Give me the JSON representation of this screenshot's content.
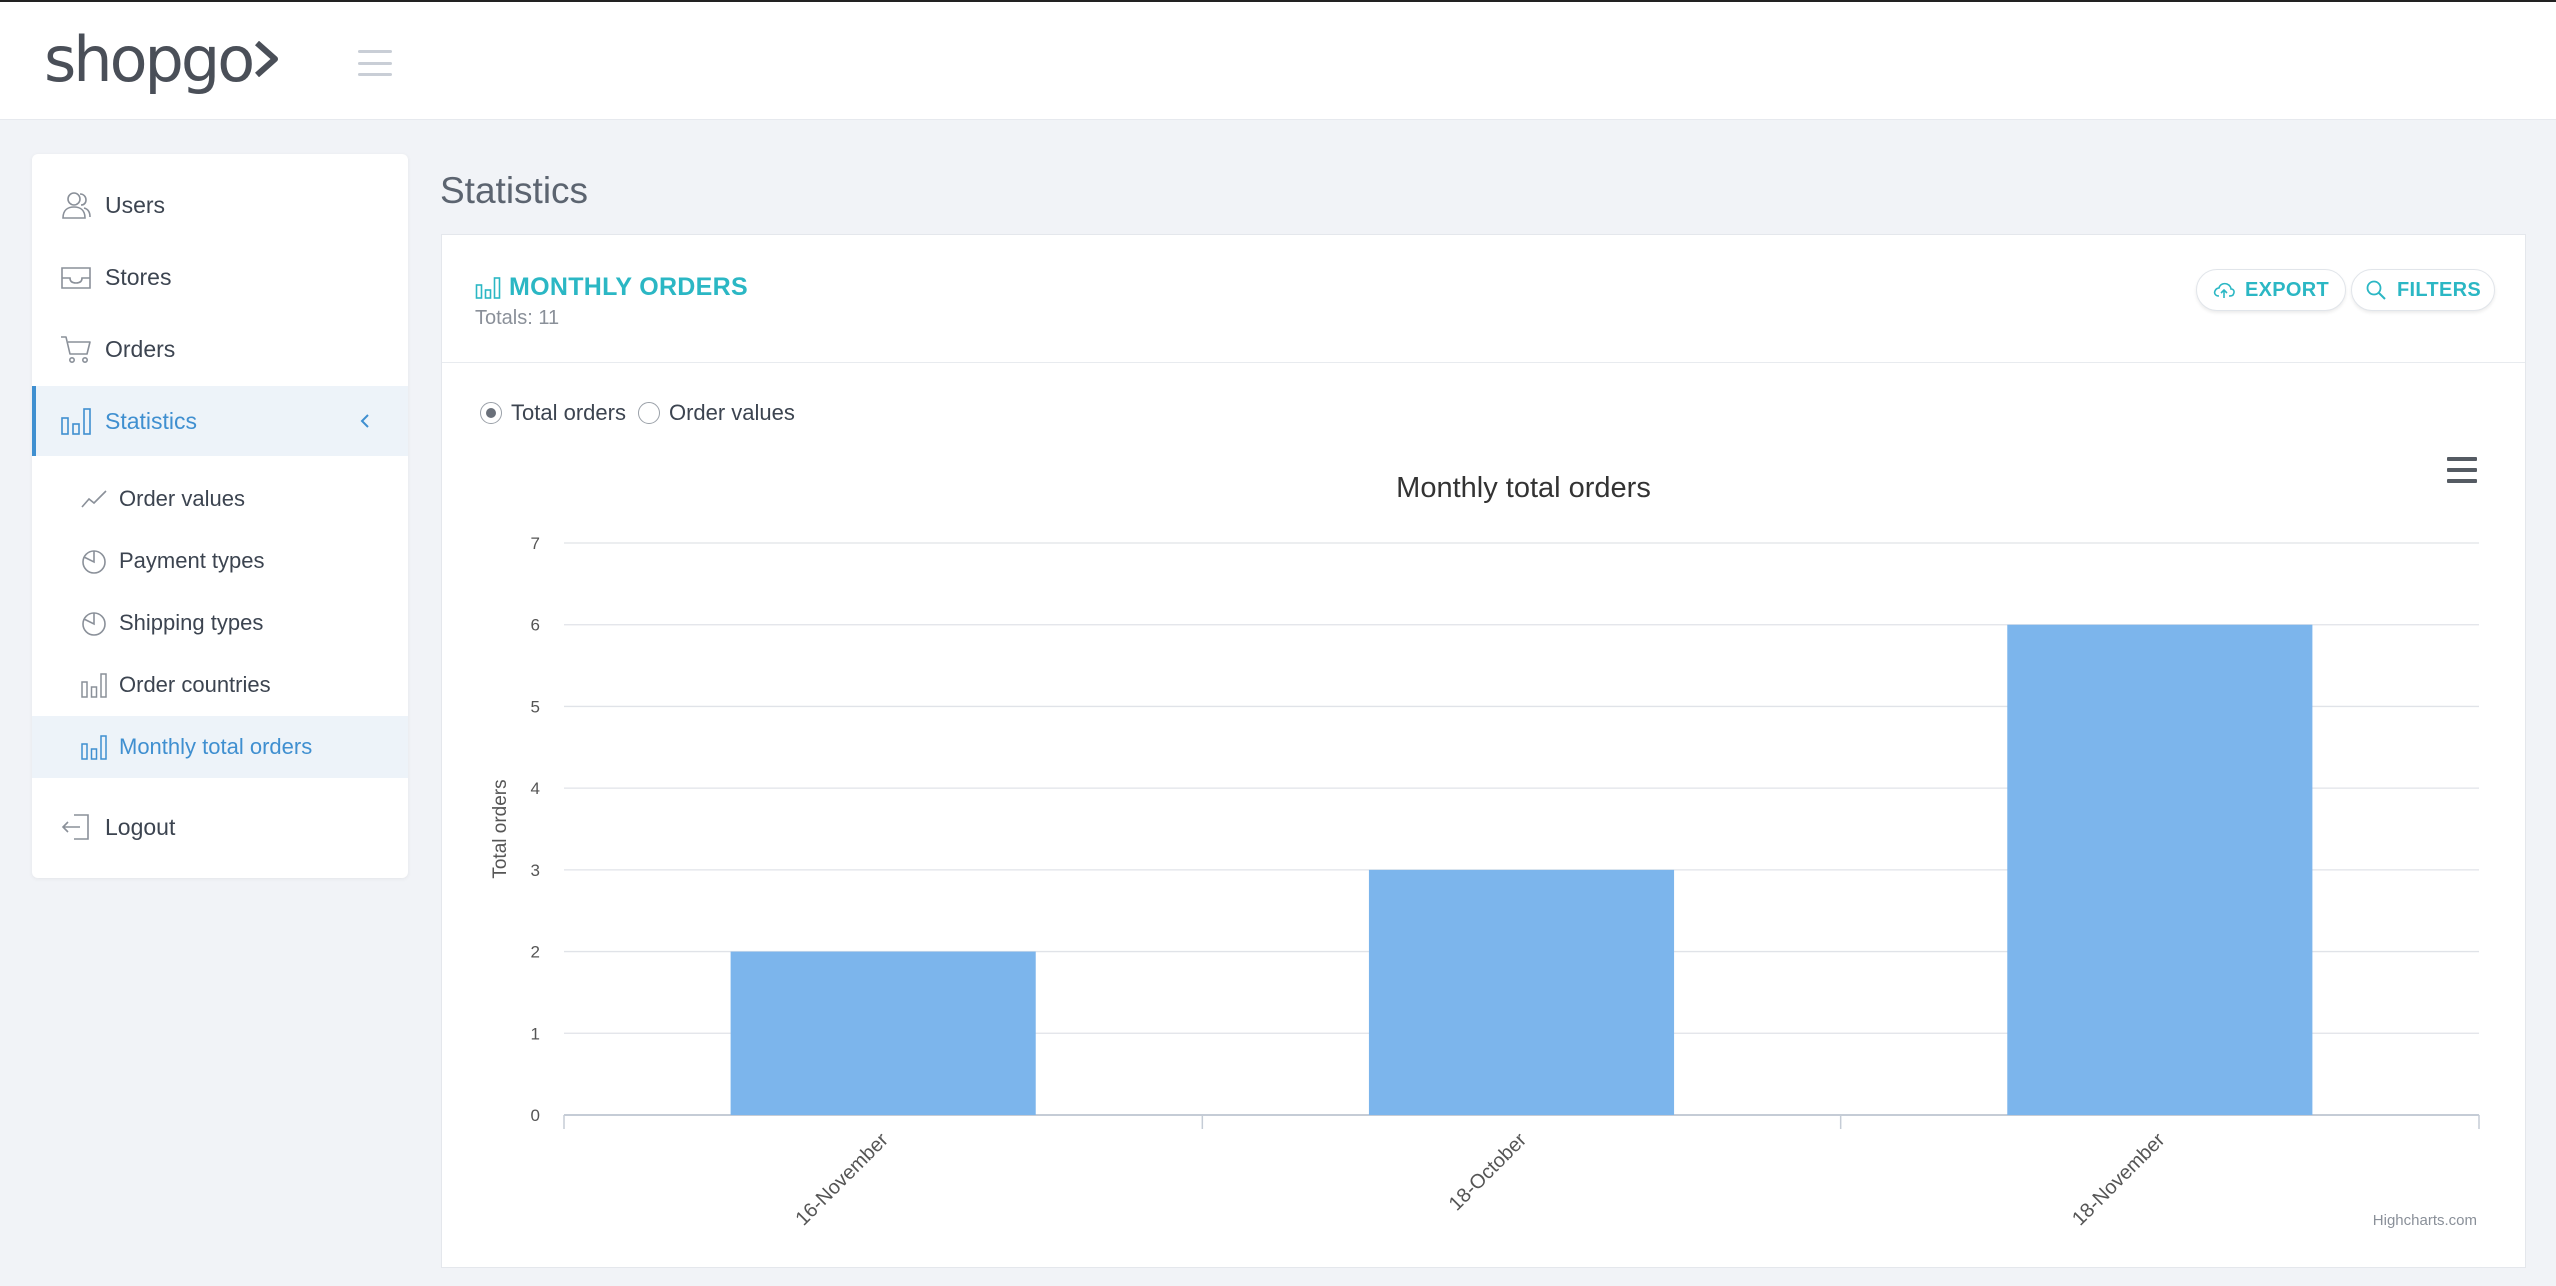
{
  "app": {
    "logo_text": "shopgo"
  },
  "sidebar": {
    "items": [
      {
        "label": "Users",
        "icon": "users-icon"
      },
      {
        "label": "Stores",
        "icon": "inbox-icon"
      },
      {
        "label": "Orders",
        "icon": "cart-icon"
      },
      {
        "label": "Statistics",
        "icon": "bar-chart-icon",
        "active": true
      },
      {
        "label": "Logout",
        "icon": "logout-icon"
      }
    ],
    "sub_items": [
      {
        "label": "Order values",
        "icon": "line-chart-icon"
      },
      {
        "label": "Payment types",
        "icon": "pie-chart-icon"
      },
      {
        "label": "Shipping types",
        "icon": "pie-chart-icon"
      },
      {
        "label": "Order countries",
        "icon": "bar-chart-icon"
      },
      {
        "label": "Monthly total orders",
        "icon": "bar-chart-icon",
        "active": true
      }
    ]
  },
  "page": {
    "title": "Statistics"
  },
  "card": {
    "title": "MONTHLY ORDERS",
    "subtitle": "Totals: 11",
    "export_label": "EXPORT",
    "filters_label": "FILTERS"
  },
  "radios": {
    "options": [
      "Total orders",
      "Order values"
    ],
    "selected": "Total orders"
  },
  "colors": {
    "accent": "#2bb7c4",
    "active_blue": "#3f8fd0",
    "bar": "#7cb5ec"
  },
  "chart_credit": "Highcharts.com",
  "chart_data": {
    "type": "bar",
    "title": "Monthly total orders",
    "ylabel": "Total orders",
    "xlabel": "",
    "categories": [
      "16-November",
      "18-October",
      "18-November"
    ],
    "values": [
      2,
      3,
      6
    ],
    "ylim": [
      0,
      7
    ],
    "yticks": [
      0,
      1,
      2,
      3,
      4,
      5,
      6,
      7
    ],
    "grid": true,
    "legend": "none"
  }
}
